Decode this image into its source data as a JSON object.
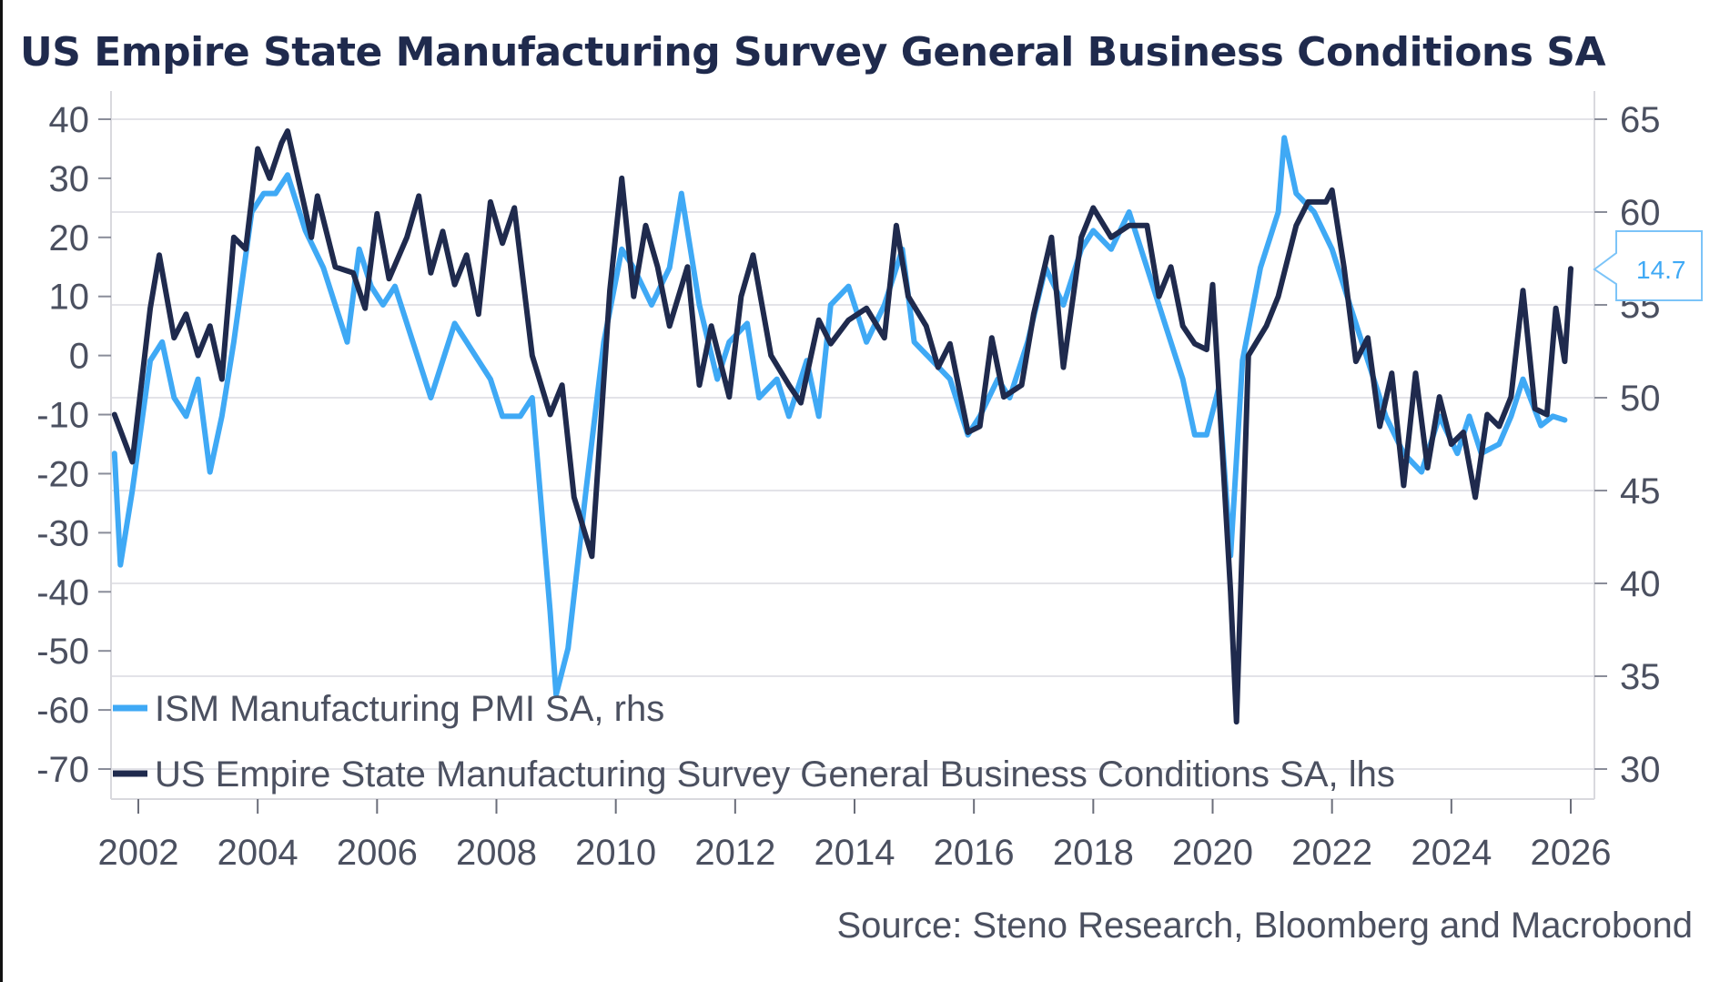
{
  "chart_data": {
    "type": "line",
    "title": "US Empire State Manufacturing Survey General Business Conditions SA",
    "source": "Source: Steno Research, Bloomberg and Macrobond",
    "xlabel": "",
    "ylabel_left": "",
    "ylabel_right": "",
    "xlim": [
      2001.6,
      2026.1
    ],
    "x_ticks": [
      "2002",
      "2004",
      "2006",
      "2008",
      "2010",
      "2012",
      "2014",
      "2016",
      "2018",
      "2020",
      "2022",
      "2024",
      "2026"
    ],
    "x_tick_values": [
      2002,
      2004,
      2006,
      2008,
      2010,
      2012,
      2014,
      2016,
      2018,
      2020,
      2022,
      2024,
      2026
    ],
    "ylim_left": [
      -70,
      40
    ],
    "yticks_left": [
      "40",
      "30",
      "20",
      "10",
      "0",
      "-10",
      "-20",
      "-30",
      "-40",
      "-50",
      "-60",
      "-70"
    ],
    "ytick_values_left": [
      40,
      30,
      20,
      10,
      0,
      -10,
      -20,
      -30,
      -40,
      -50,
      -60,
      -70
    ],
    "ylim_right": [
      30,
      65
    ],
    "yticks_right": [
      "65",
      "60",
      "55",
      "50",
      "45",
      "40",
      "35",
      "30"
    ],
    "ytick_values_right": [
      65,
      60,
      55,
      50,
      45,
      40,
      35,
      30
    ],
    "grid": true,
    "legend_position": "bottom-left",
    "last_value_label": "14.7",
    "series": [
      {
        "name": "ISM Manufacturing PMI SA, rhs",
        "axis": "right",
        "color": "#3fa9f5",
        "x": [
          2001.6,
          2001.7,
          2001.9,
          2002.2,
          2002.4,
          2002.6,
          2002.8,
          2003.0,
          2003.2,
          2003.4,
          2003.6,
          2003.9,
          2004.1,
          2004.3,
          2004.5,
          2004.8,
          2005.1,
          2005.3,
          2005.5,
          2005.7,
          2005.9,
          2006.1,
          2006.3,
          2006.6,
          2006.9,
          2007.1,
          2007.3,
          2007.5,
          2007.7,
          2007.9,
          2008.1,
          2008.4,
          2008.6,
          2008.9,
          2009.0,
          2009.2,
          2009.5,
          2009.8,
          2010.1,
          2010.3,
          2010.6,
          2010.9,
          2011.1,
          2011.4,
          2011.7,
          2011.9,
          2012.2,
          2012.4,
          2012.7,
          2012.9,
          2013.2,
          2013.4,
          2013.6,
          2013.9,
          2014.2,
          2014.5,
          2014.8,
          2015.0,
          2015.3,
          2015.6,
          2015.9,
          2016.1,
          2016.4,
          2016.6,
          2016.9,
          2017.2,
          2017.5,
          2017.8,
          2018.0,
          2018.3,
          2018.6,
          2018.9,
          2019.2,
          2019.5,
          2019.7,
          2019.9,
          2020.1,
          2020.3,
          2020.5,
          2020.8,
          2021.1,
          2021.2,
          2021.4,
          2021.7,
          2022.0,
          2022.3,
          2022.6,
          2022.9,
          2023.2,
          2023.5,
          2023.8,
          2024.1,
          2024.3,
          2024.5,
          2024.8,
          2025.0,
          2025.2,
          2025.5,
          2025.7,
          2025.9
        ],
        "values": [
          47,
          41,
          45,
          52,
          53,
          50,
          49,
          51,
          46,
          49,
          53,
          60,
          61,
          61,
          62,
          59,
          57,
          55,
          53,
          58,
          56,
          55,
          56,
          53,
          50,
          52,
          54,
          53,
          52,
          51,
          49,
          49,
          50,
          38.5,
          34,
          36.5,
          45,
          53,
          58,
          57,
          55,
          57,
          61,
          55,
          51,
          53,
          54,
          50,
          51,
          49,
          52,
          49,
          55,
          56,
          53,
          55,
          58,
          53,
          52,
          51,
          48,
          49,
          51,
          50,
          53,
          57,
          55,
          58,
          59,
          58,
          60,
          57,
          54,
          51,
          48,
          48,
          50.5,
          41.5,
          52,
          57,
          60,
          64,
          61,
          60,
          58,
          55,
          52,
          49,
          47,
          46,
          49,
          47,
          49,
          47,
          47.5,
          49,
          51,
          48.5,
          49,
          48.8
        ]
      },
      {
        "name": "US Empire State Manufacturing Survey General Business Conditions SA, lhs",
        "axis": "left",
        "color": "#1f2a4d",
        "x": [
          2001.6,
          2001.9,
          2002.2,
          2002.35,
          2002.6,
          2002.8,
          2003.0,
          2003.2,
          2003.4,
          2003.6,
          2003.8,
          2004.0,
          2004.2,
          2004.4,
          2004.5,
          2004.7,
          2004.9,
          2005.0,
          2005.3,
          2005.6,
          2005.8,
          2006.0,
          2006.2,
          2006.5,
          2006.7,
          2006.9,
          2007.1,
          2007.3,
          2007.5,
          2007.7,
          2007.9,
          2008.1,
          2008.3,
          2008.6,
          2008.9,
          2009.1,
          2009.3,
          2009.6,
          2009.9,
          2010.1,
          2010.3,
          2010.5,
          2010.7,
          2010.9,
          2011.2,
          2011.4,
          2011.6,
          2011.9,
          2012.1,
          2012.3,
          2012.6,
          2012.9,
          2013.1,
          2013.4,
          2013.6,
          2013.9,
          2014.2,
          2014.5,
          2014.7,
          2014.9,
          2015.2,
          2015.4,
          2015.6,
          2015.9,
          2016.1,
          2016.3,
          2016.5,
          2016.8,
          2017.0,
          2017.3,
          2017.5,
          2017.8,
          2018.0,
          2018.3,
          2018.6,
          2018.9,
          2019.1,
          2019.3,
          2019.5,
          2019.7,
          2019.9,
          2020.0,
          2020.3,
          2020.4,
          2020.6,
          2020.9,
          2021.1,
          2021.4,
          2021.6,
          2021.9,
          2022.0,
          2022.2,
          2022.4,
          2022.6,
          2022.8,
          2023.0,
          2023.2,
          2023.4,
          2023.6,
          2023.8,
          2024.0,
          2024.2,
          2024.4,
          2024.6,
          2024.8,
          2025.0,
          2025.2,
          2025.4,
          2025.6,
          2025.75,
          2025.9,
          2026.0
        ],
        "values": [
          -10,
          -18,
          8,
          17,
          3,
          7,
          0,
          5,
          -4,
          20,
          18,
          35,
          30,
          36,
          38,
          29,
          20,
          27,
          15,
          14,
          8,
          24,
          13,
          20,
          27,
          14,
          21,
          12,
          17,
          7,
          26,
          19,
          25,
          0,
          -10,
          -5,
          -24,
          -34,
          11,
          30,
          10,
          22,
          15,
          5,
          15,
          -5,
          5,
          -7,
          10,
          17,
          0,
          -5,
          -8,
          6,
          2,
          6,
          8,
          3,
          22,
          10,
          5,
          -2,
          2,
          -13,
          -12,
          3,
          -7,
          -5,
          7,
          20,
          -2,
          20,
          25,
          20,
          22,
          22,
          10,
          15,
          5,
          2,
          1,
          12,
          -40,
          -62,
          0,
          5,
          10,
          22,
          26,
          26,
          28,
          15,
          -1,
          3,
          -12,
          -3,
          -22,
          -3,
          -19,
          -7,
          -15,
          -13,
          -24,
          -10,
          -12,
          -7,
          11,
          -9,
          -10,
          8,
          -1,
          14.7
        ]
      }
    ]
  }
}
